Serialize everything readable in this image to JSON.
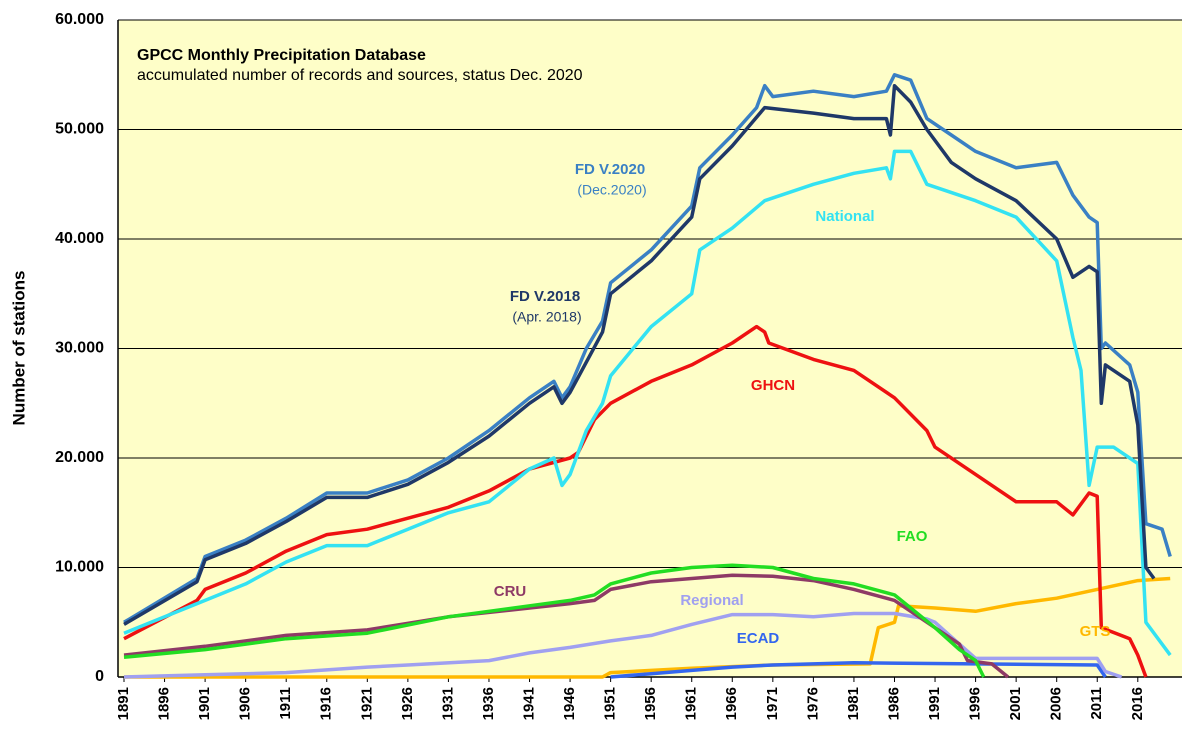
{
  "chart_data": {
    "type": "line",
    "title": "GPCC Monthly Precipitation Database",
    "subtitle": "accumulated number of records and sources, status Dec. 2020",
    "y_label": "Number of stations",
    "xlim": [
      1890.26,
      2021.45
    ],
    "xticks": [
      1891,
      1896,
      1901,
      1906,
      1911,
      1916,
      1921,
      1926,
      1931,
      1936,
      1941,
      1946,
      1951,
      1956,
      1961,
      1966,
      1971,
      1976,
      1981,
      1986,
      1991,
      1996,
      2001,
      2006,
      2011,
      2016
    ],
    "ylim": [
      0,
      60000
    ],
    "yticks": [
      0,
      {
        "value": 10000,
        "label": "10.000"
      },
      {
        "value": 20000,
        "label": "20.000"
      },
      {
        "value": 30000,
        "label": "30.000"
      },
      {
        "value": 40000,
        "label": "40.000"
      },
      {
        "value": 50000,
        "label": "50.000"
      },
      {
        "value": 60000,
        "label": "60.000"
      }
    ],
    "grid": true,
    "background": "#fefec8",
    "series": [
      {
        "name": "FD V.2020",
        "note": "(Dec.2020)",
        "color": "#3a80c4",
        "x": [
          1891,
          1900,
          1901,
          1906,
          1911,
          1916,
          1921,
          1926,
          1931,
          1936,
          1941,
          1944,
          1945,
          1946,
          1948,
          1950,
          1951,
          1956,
          1961,
          1962,
          1966,
          1969,
          1970,
          1971,
          1976,
          1981,
          1985,
          1986,
          1988,
          1990,
          1993,
          1996,
          2001,
          2006,
          2008,
          2010,
          2011,
          2011.5,
          2012,
          2015,
          2016,
          2017,
          2019,
          2020
        ],
        "values": [
          5000,
          9000,
          11000,
          12500,
          14500,
          16800,
          16800,
          18000,
          20000,
          22500,
          25500,
          27000,
          25500,
          26500,
          30000,
          32500,
          36000,
          39000,
          43000,
          46500,
          49500,
          52000,
          54000,
          53000,
          53500,
          53000,
          53500,
          55000,
          54500,
          51000,
          49500,
          48000,
          46500,
          47000,
          44000,
          42000,
          41500,
          30000,
          30500,
          28500,
          26000,
          14000,
          13500,
          11000
        ]
      },
      {
        "name": "FD V.2018",
        "note": "(Apr. 2018)",
        "color": "#1f3868",
        "x": [
          1891,
          1900,
          1901,
          1906,
          1911,
          1916,
          1921,
          1926,
          1931,
          1936,
          1941,
          1944,
          1945,
          1946,
          1950,
          1951,
          1956,
          1961,
          1962,
          1966,
          1970,
          1976,
          1981,
          1985,
          1985.5,
          1986,
          1988,
          1990,
          1993,
          1996,
          2001,
          2006,
          2008,
          2010,
          2011,
          2011.5,
          2012,
          2015,
          2016,
          2017,
          2018
        ],
        "values": [
          4800,
          8700,
          10700,
          12200,
          14200,
          16400,
          16400,
          17600,
          19600,
          22000,
          25000,
          26500,
          25000,
          26000,
          31500,
          35000,
          38000,
          42000,
          45500,
          48500,
          52000,
          51500,
          51000,
          51000,
          49500,
          54000,
          52500,
          50000,
          47000,
          45500,
          43500,
          40000,
          36500,
          37500,
          37000,
          25000,
          28500,
          27000,
          23000,
          10000,
          9000
        ]
      },
      {
        "name": "National",
        "color": "#33e2f2",
        "x": [
          1891,
          1901,
          1906,
          1911,
          1916,
          1921,
          1926,
          1931,
          1936,
          1941,
          1944,
          1945,
          1946,
          1948,
          1950,
          1951,
          1956,
          1961,
          1962,
          1966,
          1970,
          1976,
          1981,
          1985,
          1985.5,
          1986,
          1988,
          1990,
          1996,
          2001,
          2006,
          2008,
          2009,
          2010,
          2011,
          2013,
          2016,
          2017,
          2020
        ],
        "values": [
          4000,
          7000,
          8500,
          10500,
          12000,
          12000,
          13500,
          15000,
          16000,
          19000,
          20000,
          17500,
          18500,
          22500,
          25000,
          27500,
          32000,
          35000,
          39000,
          41000,
          43500,
          45000,
          46000,
          46500,
          45500,
          48000,
          48000,
          45000,
          43500,
          42000,
          38000,
          31000,
          28000,
          17500,
          21000,
          21000,
          19500,
          5000,
          2000
        ]
      },
      {
        "name": "GHCN",
        "color": "#ee1111",
        "x": [
          1891,
          1900,
          1901,
          1906,
          1911,
          1916,
          1921,
          1926,
          1931,
          1936,
          1941,
          1946,
          1947,
          1948,
          1949,
          1951,
          1956,
          1961,
          1966,
          1969,
          1970,
          1970.5,
          1976,
          1981,
          1986,
          1990,
          1991,
          1996,
          2001,
          2006,
          2008,
          2010,
          2011,
          2011.5,
          2015,
          2016,
          2017
        ],
        "values": [
          3500,
          7000,
          8000,
          9500,
          11500,
          13000,
          13500,
          14500,
          15500,
          17000,
          19000,
          20000,
          20500,
          22000,
          23500,
          25000,
          27000,
          28500,
          30500,
          32000,
          31500,
          30500,
          29000,
          28000,
          25500,
          22500,
          21000,
          18500,
          16000,
          16000,
          14800,
          16800,
          16500,
          4500,
          3500,
          2000,
          0
        ]
      },
      {
        "name": "FAO",
        "color": "#22dd22",
        "x": [
          1891,
          1901,
          1911,
          1921,
          1931,
          1941,
          1946,
          1949,
          1951,
          1956,
          1961,
          1966,
          1971,
          1976,
          1981,
          1986,
          1991,
          1994,
          1996,
          1997
        ],
        "values": [
          1800,
          2500,
          3500,
          4000,
          5500,
          6500,
          7000,
          7500,
          8500,
          9500,
          10000,
          10200,
          10000,
          9000,
          8500,
          7500,
          4500,
          2500,
          1500,
          0
        ]
      },
      {
        "name": "CRU",
        "color": "#8e3a66",
        "x": [
          1891,
          1901,
          1911,
          1921,
          1931,
          1941,
          1946,
          1949,
          1951,
          1956,
          1961,
          1966,
          1971,
          1976,
          1981,
          1986,
          1991,
          1994,
          1995,
          1998,
          2000
        ],
        "values": [
          2000,
          2800,
          3800,
          4300,
          5500,
          6300,
          6700,
          7000,
          8000,
          8700,
          9000,
          9300,
          9200,
          8800,
          8000,
          7000,
          4500,
          3000,
          1500,
          1200,
          0
        ]
      },
      {
        "name": "Regional",
        "color": "#a0a0f0",
        "x": [
          1891,
          1901,
          1911,
          1921,
          1926,
          1936,
          1941,
          1946,
          1951,
          1956,
          1961,
          1966,
          1971,
          1976,
          1981,
          1986,
          1990,
          1991,
          1994,
          1996,
          2001,
          2011,
          2012,
          2014
        ],
        "values": [
          0,
          200,
          400,
          900,
          1100,
          1500,
          2200,
          2700,
          3300,
          3800,
          4800,
          5700,
          5700,
          5500,
          5800,
          5800,
          5300,
          5000,
          3000,
          1700,
          1700,
          1700,
          500,
          0
        ]
      },
      {
        "name": "ECAD",
        "color": "#3366ee",
        "x": [
          1951,
          1956,
          1961,
          1966,
          1971,
          1981,
          1996,
          2011,
          2012
        ],
        "values": [
          0,
          300,
          600,
          900,
          1100,
          1300,
          1200,
          1100,
          0
        ]
      },
      {
        "name": "GTS",
        "color": "#ffb800",
        "x": [
          1891,
          1950,
          1951,
          1961,
          1971,
          1983,
          1984,
          1986,
          1986.5,
          1991,
          1996,
          2001,
          2006,
          2011,
          2016,
          2020
        ],
        "values": [
          0,
          0,
          400,
          800,
          1100,
          1200,
          4500,
          5000,
          6500,
          6300,
          6000,
          6700,
          7200,
          8000,
          8800,
          9000
        ]
      }
    ]
  }
}
